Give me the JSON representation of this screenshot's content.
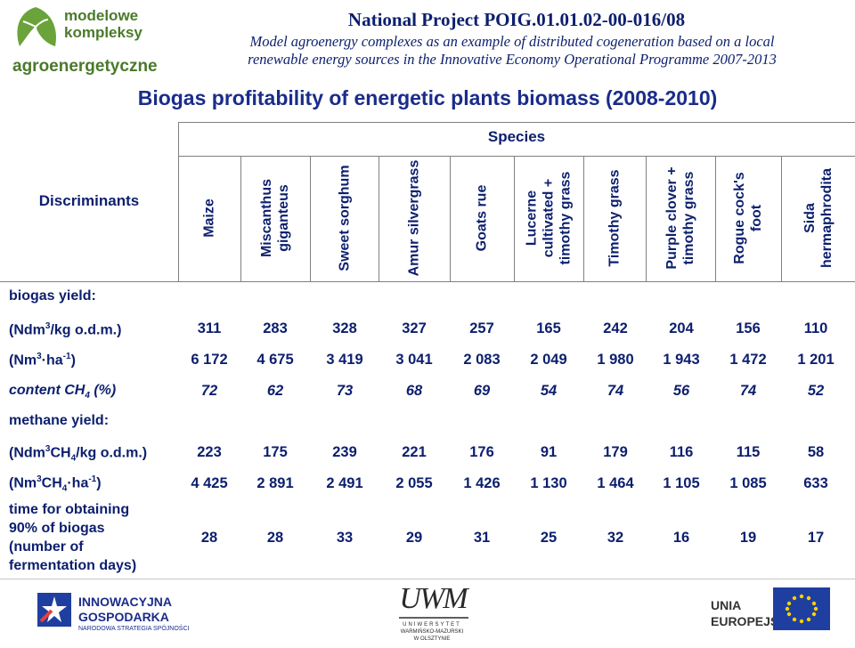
{
  "header": {
    "logo_line1": "modelowe",
    "logo_line2": "kompleksy",
    "logo_line3": "agroenergetyczne",
    "project_title": "National Project POIG.01.01.02-00-016/08",
    "project_subtitle_1": "Model agroenergy complexes as an example of distributed cogeneration based on a local",
    "project_subtitle_2": "renewable energy sources in the Innovative Economy Operational Programme 2007-2013"
  },
  "title": "Biogas profitability of energetic plants biomass (2008-2010)",
  "table": {
    "species_header": "Species",
    "discriminants_header": "Discriminants",
    "columns": [
      "Maize",
      "Miscanthus giganteus",
      "Sweet sorghum",
      "Amur silvergrass",
      "Goats rue",
      "Lucerne cultivated + timothy grass",
      "Timothy grass",
      "Purple clover + timothy grass",
      "Rogue cock's foot",
      "Sida hermaphrodita"
    ],
    "rows": {
      "biogas_yield_label": "biogas yield:",
      "biogas_kg": [
        "311",
        "283",
        "328",
        "327",
        "257",
        "165",
        "242",
        "204",
        "156",
        "110"
      ],
      "biogas_ha": [
        "6 172",
        "4 675",
        "3 419",
        "3 041",
        "2 083",
        "2 049",
        "1 980",
        "1 943",
        "1 472",
        "1 201"
      ],
      "content_ch4": [
        "72",
        "62",
        "73",
        "68",
        "69",
        "54",
        "74",
        "56",
        "74",
        "52"
      ],
      "methane_yield_label": "methane yield:",
      "methane_kg": [
        "223",
        "175",
        "239",
        "221",
        "176",
        "91",
        "179",
        "116",
        "115",
        "58"
      ],
      "methane_ha": [
        "4 425",
        "2 891",
        "2 491",
        "2 055",
        "1 426",
        "1 130",
        "1 464",
        "1 105",
        "1 085",
        "633"
      ],
      "time_label_1": "time for obtaining",
      "time_label_2": "90% of biogas",
      "time_label_3": "(number of",
      "time_label_4": "fermentation days)",
      "time_days": [
        "28",
        "28",
        "33",
        "29",
        "31",
        "25",
        "32",
        "16",
        "19",
        "17"
      ]
    }
  },
  "footer": {
    "ig_line1": "INNOWACYJNA",
    "ig_line2": "GOSPODARKA",
    "ig_line3": "NARODOWA STRATEGIA SPÓJNOŚCI",
    "uwm_letters": "UWM",
    "uwm_line1": "UNIWERSYTET",
    "uwm_line2": "WARMIŃSKO-MAZURSKI",
    "uwm_line3": "W OLSZTYNIE",
    "eu_line1": "UNIA",
    "eu_line2": "EUROPEJSKA"
  },
  "colors": {
    "text_blue": "#0c1f6e",
    "title_blue": "#1a2c8a",
    "logo_green": "#4a7a2a",
    "eu_blue": "#1f3fa0",
    "eu_yellow": "#ffd100"
  }
}
